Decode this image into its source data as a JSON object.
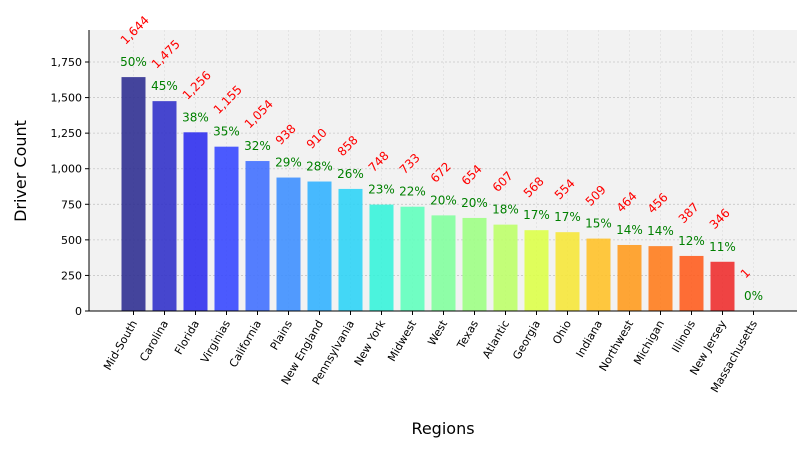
{
  "chart_data": {
    "type": "bar",
    "title": "",
    "xlabel": "Regions",
    "ylabel": "Driver Count",
    "ylim": [
      0,
      1975
    ],
    "yticks": [
      0,
      250,
      500,
      750,
      1000,
      1250,
      1500,
      1750
    ],
    "ytick_labels": [
      "0",
      "250",
      "500",
      "750",
      "1,000",
      "1,250",
      "1,500",
      "1,750"
    ],
    "grid": true,
    "categories": [
      "Mid-South",
      "Carolina",
      "Florida",
      "Virginias",
      "California",
      "Plains",
      "New England",
      "Pennsylvania",
      "New York",
      "Midwest",
      "West",
      "Texas",
      "Atlantic",
      "Georgia",
      "Ohio",
      "Indiana",
      "Northwest",
      "Michigan",
      "Illinois",
      "New Jersey",
      "Massachusetts"
    ],
    "values": [
      1644,
      1475,
      1256,
      1155,
      1054,
      938,
      910,
      858,
      748,
      733,
      672,
      654,
      607,
      568,
      554,
      509,
      464,
      456,
      387,
      346,
      1
    ],
    "count_labels": [
      "1,644",
      "1,475",
      "1,256",
      "1,155",
      "1,054",
      "938",
      "910",
      "858",
      "748",
      "733",
      "672",
      "654",
      "607",
      "568",
      "554",
      "509",
      "464",
      "456",
      "387",
      "346",
      "1"
    ],
    "percent_labels": [
      "50%",
      "45%",
      "38%",
      "35%",
      "32%",
      "29%",
      "28%",
      "26%",
      "23%",
      "22%",
      "20%",
      "20%",
      "18%",
      "17%",
      "17%",
      "15%",
      "14%",
      "14%",
      "12%",
      "11%",
      "0%"
    ],
    "bar_colors": [
      "#2b2b8f",
      "#2e2ec8",
      "#2a2aee",
      "#3344ff",
      "#3d6dff",
      "#3a8dff",
      "#2fb1ff",
      "#2ad3f6",
      "#33f2d9",
      "#5dffbc",
      "#7fff9c",
      "#9cff82",
      "#bcff66",
      "#dcff45",
      "#f6e635",
      "#ffc024",
      "#ff9a1a",
      "#ff7a18",
      "#ff5a1a",
      "#ee2a2a",
      "#dd1111"
    ],
    "count_label_color": "#ff0000",
    "percent_label_color": "#008000",
    "plot_background": "#f2f2f2"
  }
}
